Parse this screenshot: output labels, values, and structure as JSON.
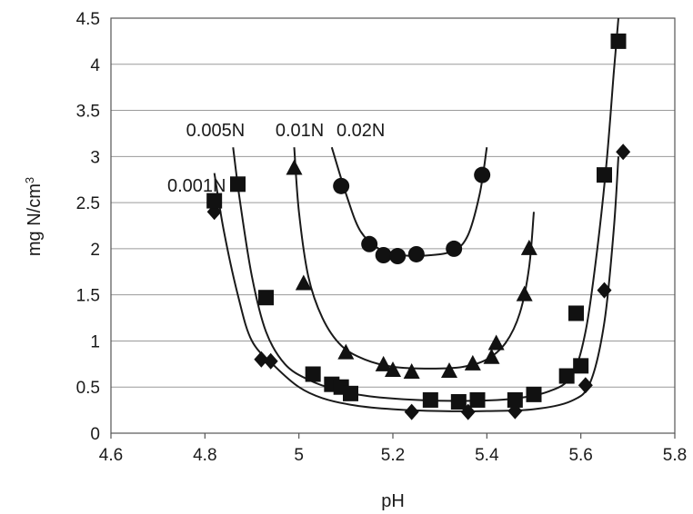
{
  "chart_data": {
    "type": "scatter",
    "title": "",
    "xlabel": "pH",
    "ylabel": "mg N/cm",
    "ylabel_superscript": "3",
    "xlim": [
      4.6,
      5.8
    ],
    "ylim": [
      0,
      4.5
    ],
    "xticks": [
      "4.6",
      "4.8",
      "5",
      "5.2",
      "5.4",
      "5.6",
      "5.8"
    ],
    "yticks": [
      "0",
      "0.5",
      "1",
      "1.5",
      "2",
      "2.5",
      "3",
      "3.5",
      "4",
      "4.5"
    ],
    "grid": "horizontal",
    "legend": "none",
    "series": [
      {
        "name": "0.001N",
        "marker": "diamond",
        "x": [
          4.82,
          4.92,
          4.94,
          5.24,
          5.36,
          5.46,
          5.61,
          5.65,
          5.69
        ],
        "y": [
          2.4,
          0.8,
          0.78,
          0.23,
          0.23,
          0.24,
          0.52,
          1.55,
          3.05
        ],
        "curve": [
          [
            4.82,
            2.82
          ],
          [
            4.84,
            2.2
          ],
          [
            4.87,
            1.5
          ],
          [
            4.9,
            1.0
          ],
          [
            4.95,
            0.72
          ],
          [
            5.0,
            0.5
          ],
          [
            5.05,
            0.38
          ],
          [
            5.12,
            0.3
          ],
          [
            5.2,
            0.26
          ],
          [
            5.3,
            0.24
          ],
          [
            5.4,
            0.24
          ],
          [
            5.5,
            0.26
          ],
          [
            5.58,
            0.35
          ],
          [
            5.62,
            0.55
          ],
          [
            5.65,
            1.2
          ],
          [
            5.67,
            2.2
          ],
          [
            5.68,
            3.0
          ]
        ]
      },
      {
        "name": "0.005N",
        "marker": "square",
        "x": [
          4.82,
          4.87,
          4.93,
          5.03,
          5.07,
          5.09,
          5.11,
          5.28,
          5.34,
          5.38,
          5.46,
          5.5,
          5.57,
          5.59,
          5.6,
          5.65,
          5.68
        ],
        "y": [
          2.52,
          2.7,
          1.47,
          0.64,
          0.53,
          0.5,
          0.43,
          0.36,
          0.34,
          0.36,
          0.36,
          0.42,
          0.62,
          1.3,
          0.73,
          2.8,
          4.25
        ],
        "curve": [
          [
            4.86,
            3.1
          ],
          [
            4.875,
            2.5
          ],
          [
            4.9,
            1.7
          ],
          [
            4.93,
            1.1
          ],
          [
            4.97,
            0.75
          ],
          [
            5.02,
            0.58
          ],
          [
            5.08,
            0.47
          ],
          [
            5.15,
            0.4
          ],
          [
            5.25,
            0.36
          ],
          [
            5.35,
            0.35
          ],
          [
            5.45,
            0.37
          ],
          [
            5.53,
            0.45
          ],
          [
            5.58,
            0.62
          ],
          [
            5.61,
            1.1
          ],
          [
            5.635,
            2.0
          ],
          [
            5.655,
            2.95
          ],
          [
            5.67,
            3.9
          ],
          [
            5.68,
            4.5
          ]
        ]
      },
      {
        "name": "0.01N",
        "marker": "triangle",
        "x": [
          4.99,
          5.01,
          5.1,
          5.18,
          5.2,
          5.24,
          5.32,
          5.37,
          5.41,
          5.42,
          5.48,
          5.49
        ],
        "y": [
          2.87,
          1.62,
          0.87,
          0.74,
          0.68,
          0.66,
          0.67,
          0.75,
          0.82,
          0.97,
          1.5,
          2.0
        ],
        "curve": [
          [
            4.99,
            3.1
          ],
          [
            5.0,
            2.4
          ],
          [
            5.02,
            1.7
          ],
          [
            5.05,
            1.25
          ],
          [
            5.09,
            0.95
          ],
          [
            5.14,
            0.8
          ],
          [
            5.2,
            0.72
          ],
          [
            5.28,
            0.7
          ],
          [
            5.35,
            0.72
          ],
          [
            5.4,
            0.8
          ],
          [
            5.44,
            0.98
          ],
          [
            5.47,
            1.3
          ],
          [
            5.49,
            1.8
          ],
          [
            5.5,
            2.4
          ]
        ]
      },
      {
        "name": "0.02N",
        "marker": "circle",
        "x": [
          5.09,
          5.15,
          5.18,
          5.21,
          5.25,
          5.33,
          5.39
        ],
        "y": [
          2.68,
          2.05,
          1.93,
          1.92,
          1.94,
          2.0,
          2.8
        ],
        "curve": [
          [
            5.07,
            3.1
          ],
          [
            5.1,
            2.6
          ],
          [
            5.13,
            2.2
          ],
          [
            5.17,
            2.0
          ],
          [
            5.22,
            1.93
          ],
          [
            5.28,
            1.93
          ],
          [
            5.33,
            1.98
          ],
          [
            5.36,
            2.15
          ],
          [
            5.385,
            2.6
          ],
          [
            5.4,
            3.1
          ]
        ]
      }
    ],
    "annotations": [
      {
        "text": "0.001N",
        "x": 4.72,
        "y": 2.62
      },
      {
        "text": "0.005N",
        "x": 4.76,
        "y": 3.22
      },
      {
        "text": "0.01N",
        "x": 4.95,
        "y": 3.22
      },
      {
        "text": "0.02N",
        "x": 5.08,
        "y": 3.22
      }
    ]
  }
}
